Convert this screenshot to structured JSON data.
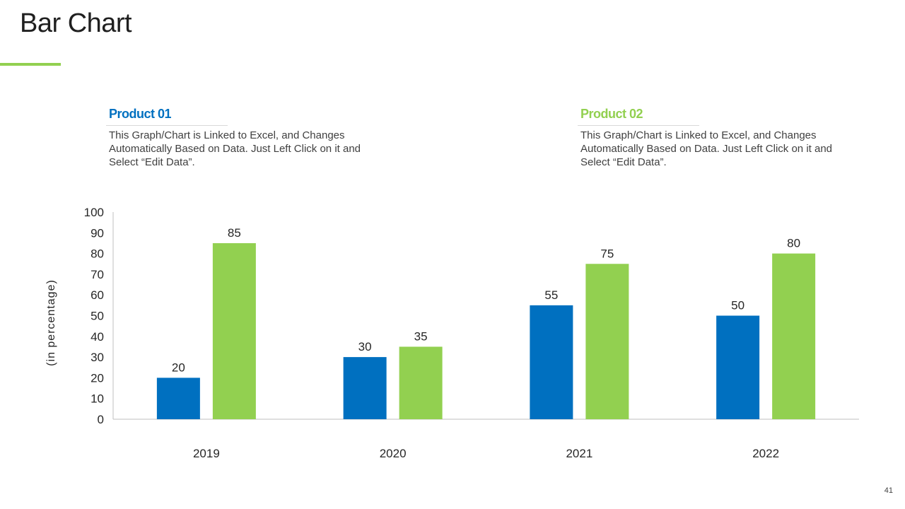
{
  "page": {
    "title": "Bar Chart",
    "page_number": "41"
  },
  "colors": {
    "accent": "#92d050",
    "product01": "#0070c0",
    "product02": "#92d050",
    "axis": "#bfbfbf",
    "text": "#262626"
  },
  "legend": [
    {
      "heading": "Product 01",
      "description": "This Graph/Chart is Linked to Excel, and Changes Automatically Based on Data. Just Left Click on it and Select “Edit Data”."
    },
    {
      "heading": "Product 02",
      "description": "This Graph/Chart is Linked to Excel, and Changes Automatically Based on Data. Just Left Click on it and Select “Edit Data”."
    }
  ],
  "chart_data": {
    "type": "bar",
    "title": "Bar Chart",
    "xlabel": "",
    "ylabel": "(in percentage)",
    "categories": [
      "2019",
      "2020",
      "2021",
      "2022"
    ],
    "series": [
      {
        "name": "Product 01",
        "values": [
          20,
          30,
          55,
          50
        ]
      },
      {
        "name": "Product 02",
        "values": [
          85,
          35,
          75,
          80
        ]
      }
    ],
    "ylim": [
      0,
      100
    ],
    "yticks": [
      0,
      10,
      20,
      30,
      40,
      50,
      60,
      70,
      80,
      90,
      100
    ],
    "grid": false,
    "data_labels": true,
    "legend": "top"
  }
}
